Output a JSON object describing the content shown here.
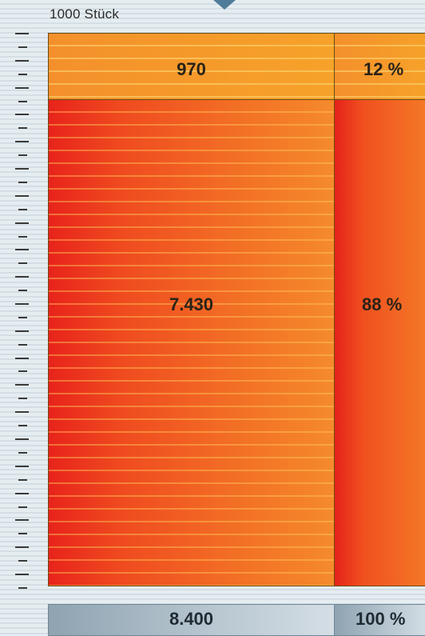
{
  "chart_data": {
    "type": "bar",
    "unit": "1000 Stück",
    "segments": [
      {
        "value": 970,
        "label": "970",
        "percent_label": "12 %",
        "percent": 12,
        "color": "#f6a22a"
      },
      {
        "value": 7430,
        "label": "7.430",
        "percent_label": "88 %",
        "percent": 88,
        "color": "#ef3f1e"
      }
    ],
    "total": {
      "value": 8400,
      "label": "8.400",
      "percent_label": "100 %"
    },
    "ylim": [
      0,
      8400
    ]
  },
  "colors": {
    "pointer": "#4f7c98",
    "background": "#e6edf1"
  }
}
